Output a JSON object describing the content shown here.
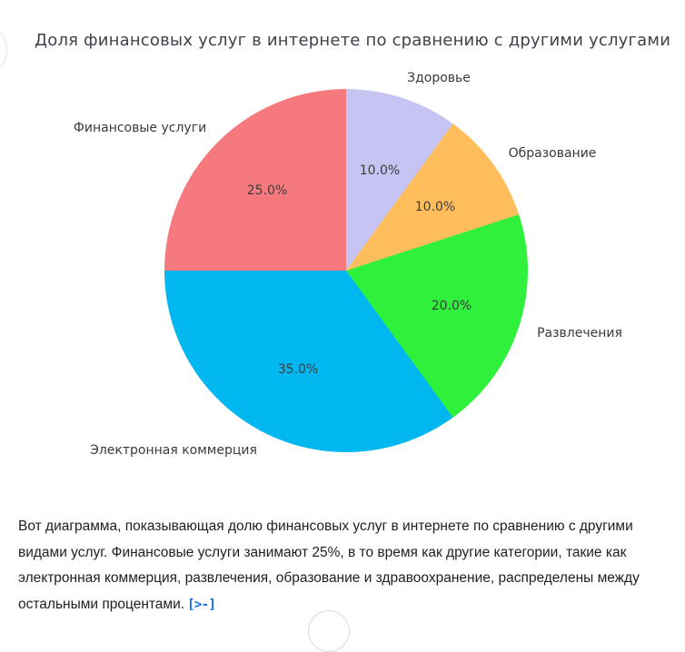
{
  "header": {
    "title": "Доля финансовых услуг в интернете по сравнению с другими услугами"
  },
  "chart_data": {
    "type": "pie",
    "title": "Доля финансовых услуг в интернете по сравнению с другими услугами",
    "categories": [
      "Здоровье",
      "Образование",
      "Развлечения",
      "Электронная коммерция",
      "Финансовые услуги"
    ],
    "values": [
      10,
      10,
      20,
      35,
      25
    ],
    "pct_labels": [
      "10.0%",
      "10.0%",
      "20.0%",
      "35.0%",
      "25.0%"
    ],
    "colors": [
      "#C6C4F2",
      "#FFBE5B",
      "#2FF13B",
      "#00B7F0",
      "#F6797E"
    ],
    "start_angle": "12-oclock",
    "direction": "clockwise",
    "legend": "none",
    "label_color": "#3a3a3a"
  },
  "message": {
    "lines": [
      "Вот диаграмма, показывающая долю финансовых услуг в интернете по сравнению с другими",
      "видами услуг. Финансовые услуги занимают 25%, в то время как другие категории, такие как",
      "электронная коммерция, развлечения, образование и здравоохранение, распределены между",
      "остальными процентами."
    ],
    "code_chip": "[>-]"
  },
  "accent_color": "#1a73e8"
}
